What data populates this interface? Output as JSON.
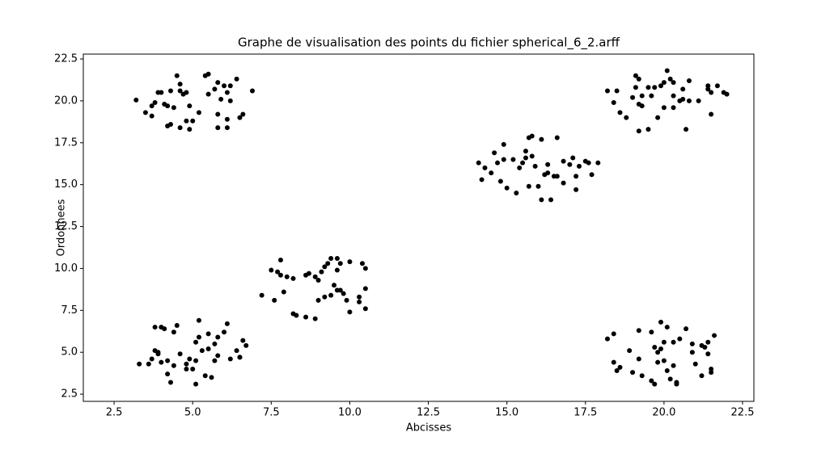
{
  "chart_data": {
    "type": "scatter",
    "title": "Graphe de visualisation des points du fichier spherical_6_2.arff",
    "x_label": "Abcisses",
    "y_label": "Ordonnees",
    "color": "#000000",
    "x": [
      3.2,
      3.5,
      3.7,
      3.7,
      3.8,
      3.9,
      4.0,
      4.1,
      4.2,
      4.3,
      4.2,
      4.3,
      4.4,
      4.5,
      4.6,
      4.6,
      4.7,
      4.8,
      4.6,
      4.8,
      4.9,
      4.9,
      5.0,
      5.2,
      5.4,
      5.5,
      5.5,
      5.7,
      5.8,
      5.8,
      5.8,
      5.9,
      6.0,
      6.1,
      6.1,
      6.1,
      6.2,
      6.2,
      6.4,
      6.5,
      6.6,
      6.9,
      18.2,
      18.4,
      18.5,
      18.6,
      18.8,
      19.0,
      19.1,
      19.1,
      19.2,
      19.2,
      19.2,
      19.3,
      19.3,
      19.5,
      19.5,
      19.6,
      19.7,
      19.8,
      19.9,
      20.0,
      20.0,
      20.1,
      20.2,
      20.3,
      20.3,
      20.3,
      20.5,
      20.6,
      20.7,
      20.8,
      20.8,
      21.1,
      21.4,
      21.4,
      21.5,
      21.5,
      21.7,
      21.9,
      22.0,
      20.6,
      14.1,
      14.2,
      14.3,
      14.5,
      14.6,
      14.7,
      14.8,
      14.9,
      14.9,
      15.0,
      15.2,
      15.3,
      15.4,
      15.5,
      15.6,
      15.6,
      15.7,
      15.8,
      15.7,
      15.8,
      15.9,
      16.0,
      16.1,
      16.1,
      16.2,
      16.3,
      16.3,
      16.4,
      16.5,
      16.6,
      16.6,
      16.8,
      16.8,
      17.0,
      17.1,
      17.2,
      17.2,
      17.3,
      17.5,
      17.6,
      17.7,
      17.9,
      7.2,
      7.5,
      7.6,
      7.7,
      7.8,
      7.8,
      7.9,
      8.0,
      8.2,
      8.3,
      8.6,
      8.6,
      8.7,
      8.9,
      8.9,
      9.0,
      9.0,
      9.1,
      9.2,
      9.2,
      9.3,
      9.4,
      9.4,
      9.5,
      9.6,
      9.6,
      9.7,
      9.7,
      9.8,
      9.9,
      10.0,
      10.0,
      10.3,
      10.3,
      10.4,
      10.5,
      10.5,
      10.5,
      8.2,
      9.6,
      3.3,
      3.6,
      3.7,
      3.8,
      3.8,
      3.9,
      4.0,
      4.0,
      4.1,
      4.2,
      4.2,
      4.3,
      4.4,
      4.4,
      4.5,
      4.6,
      4.8,
      4.8,
      4.9,
      5.1,
      5.1,
      5.1,
      5.2,
      5.2,
      5.3,
      5.4,
      5.5,
      5.5,
      5.6,
      5.7,
      5.7,
      5.8,
      5.8,
      6.0,
      6.1,
      6.2,
      6.4,
      6.5,
      6.5,
      6.6,
      6.7,
      5.0,
      3.9,
      18.2,
      18.4,
      18.4,
      18.5,
      18.6,
      18.9,
      19.0,
      19.2,
      19.2,
      19.3,
      19.6,
      19.6,
      19.7,
      19.7,
      19.8,
      19.8,
      19.9,
      19.9,
      20.0,
      20.0,
      20.1,
      20.1,
      20.2,
      20.3,
      20.3,
      20.4,
      20.5,
      20.7,
      20.9,
      20.9,
      21.0,
      21.2,
      21.2,
      21.3,
      21.4,
      21.4,
      21.5,
      21.5,
      21.6,
      20.4
    ],
    "values": [
      20.05,
      19.3,
      19.7,
      19.1,
      19.9,
      20.5,
      20.5,
      19.8,
      18.5,
      18.6,
      19.7,
      20.6,
      19.6,
      21.5,
      21.0,
      20.6,
      20.4,
      20.5,
      18.4,
      18.8,
      18.3,
      19.7,
      18.8,
      19.3,
      21.5,
      21.6,
      20.4,
      20.7,
      21.1,
      19.2,
      18.4,
      20.1,
      20.9,
      20.5,
      18.4,
      18.9,
      20.0,
      20.9,
      21.3,
      19.0,
      19.2,
      20.6,
      20.6,
      19.9,
      20.6,
      19.3,
      19.0,
      20.2,
      20.8,
      21.5,
      21.3,
      19.8,
      18.2,
      19.7,
      20.3,
      18.3,
      20.8,
      20.3,
      20.8,
      19.0,
      20.9,
      19.6,
      21.1,
      21.8,
      21.3,
      21.1,
      20.3,
      19.6,
      20.0,
      20.7,
      18.3,
      21.2,
      20.0,
      20.0,
      20.7,
      20.9,
      19.2,
      20.5,
      20.9,
      20.5,
      20.4,
      20.1,
      16.3,
      15.3,
      16.0,
      15.7,
      16.9,
      16.3,
      15.2,
      17.4,
      16.5,
      14.8,
      16.5,
      14.5,
      16.0,
      16.3,
      17.0,
      16.6,
      17.8,
      17.9,
      14.9,
      16.7,
      16.1,
      14.9,
      14.1,
      17.7,
      15.6,
      16.2,
      15.7,
      14.1,
      15.5,
      17.8,
      15.5,
      15.1,
      16.4,
      16.2,
      16.6,
      15.5,
      14.7,
      16.1,
      16.4,
      16.3,
      15.6,
      16.3,
      8.4,
      9.9,
      8.1,
      9.8,
      10.5,
      9.6,
      8.6,
      9.5,
      7.3,
      7.2,
      7.1,
      9.6,
      9.7,
      7.0,
      9.5,
      9.3,
      8.1,
      9.8,
      8.3,
      10.1,
      10.3,
      10.6,
      8.4,
      9.0,
      10.6,
      8.7,
      10.3,
      8.7,
      8.5,
      8.1,
      10.4,
      7.4,
      8.3,
      8.0,
      10.3,
      7.6,
      10.0,
      8.8,
      9.4,
      9.9,
      4.3,
      4.3,
      4.6,
      6.5,
      5.1,
      5.0,
      4.4,
      6.5,
      6.4,
      3.7,
      4.5,
      3.2,
      4.2,
      6.2,
      6.6,
      4.9,
      4.3,
      4.0,
      4.6,
      3.1,
      4.5,
      5.6,
      6.9,
      5.9,
      5.1,
      3.6,
      6.1,
      5.2,
      3.5,
      5.5,
      4.5,
      5.9,
      4.8,
      6.2,
      6.7,
      4.6,
      5.1,
      4.7,
      4.7,
      5.7,
      5.4,
      4.0,
      4.9,
      5.8,
      4.4,
      6.1,
      3.9,
      4.1,
      5.1,
      3.8,
      6.3,
      4.6,
      3.6,
      6.2,
      3.3,
      3.1,
      5.3,
      5.0,
      4.4,
      6.8,
      5.2,
      5.6,
      4.5,
      3.9,
      6.5,
      3.4,
      5.6,
      4.2,
      3.2,
      5.8,
      6.4,
      5.5,
      5.0,
      4.3,
      3.6,
      5.4,
      5.3,
      5.6,
      4.9,
      4.0,
      3.8,
      6.0,
      3.1
    ],
    "xlim": [
      1.52,
      22.86
    ],
    "ylim": [
      2.07,
      22.79
    ],
    "xticks": [
      2.5,
      {
        "value": 5,
        "label": "5.0"
      },
      7.5,
      {
        "value": 10,
        "label": "10.0"
      },
      12.5,
      {
        "value": 15,
        "label": "15.0"
      },
      17.5,
      {
        "value": 20,
        "label": "20.0"
      },
      22.5
    ],
    "yticks": [
      2.5,
      {
        "value": 5,
        "label": "5.0"
      },
      7.5,
      {
        "value": 10,
        "label": "10.0"
      },
      12.5,
      {
        "value": 15,
        "label": "15.0"
      },
      17.5,
      {
        "value": 20,
        "label": "20.0"
      },
      22.5
    ],
    "grid": false
  }
}
